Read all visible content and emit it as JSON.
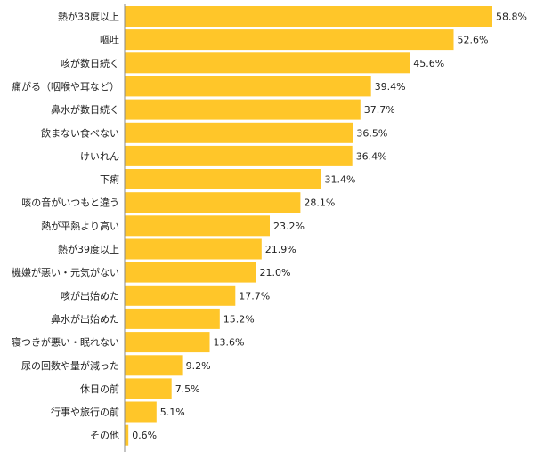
{
  "chart_data": {
    "type": "bar",
    "orientation": "horizontal",
    "title": "",
    "xlabel": "",
    "ylabel": "",
    "xlim": [
      0,
      58.8
    ],
    "grid": false,
    "legend": "none",
    "colors": {
      "bar": "#ffc629",
      "axis": "#888888",
      "text": "#222222"
    },
    "categories": [
      "熱が38度以上",
      "嘔吐",
      "咳が数日続く",
      "痛がる（咽喉や耳など）",
      "鼻水が数日続く",
      "飲まない食べない",
      "けいれん",
      "下痢",
      "咳の音がいつもと違う",
      "熱が平熱より高い",
      "熱が39度以上",
      "機嫌が悪い・元気がない",
      "咳が出始めた",
      "鼻水が出始めた",
      "寝つきが悪い・眠れない",
      "尿の回数や量が減った",
      "休日の前",
      "行事や旅行の前",
      "その他"
    ],
    "values": [
      58.8,
      52.6,
      45.6,
      39.4,
      37.7,
      36.5,
      36.4,
      31.4,
      28.1,
      23.2,
      21.9,
      21.0,
      17.7,
      15.2,
      13.6,
      9.2,
      7.5,
      5.1,
      0.6
    ],
    "value_labels": [
      "58.8%",
      "52.6%",
      "45.6%",
      "39.4%",
      "37.7%",
      "36.5%",
      "36.4%",
      "31.4%",
      "28.1%",
      "23.2%",
      "21.9%",
      "21.0%",
      "17.7%",
      "15.2%",
      "13.6%",
      "9.2%",
      "7.5%",
      "5.1%",
      "0.6%"
    ]
  }
}
